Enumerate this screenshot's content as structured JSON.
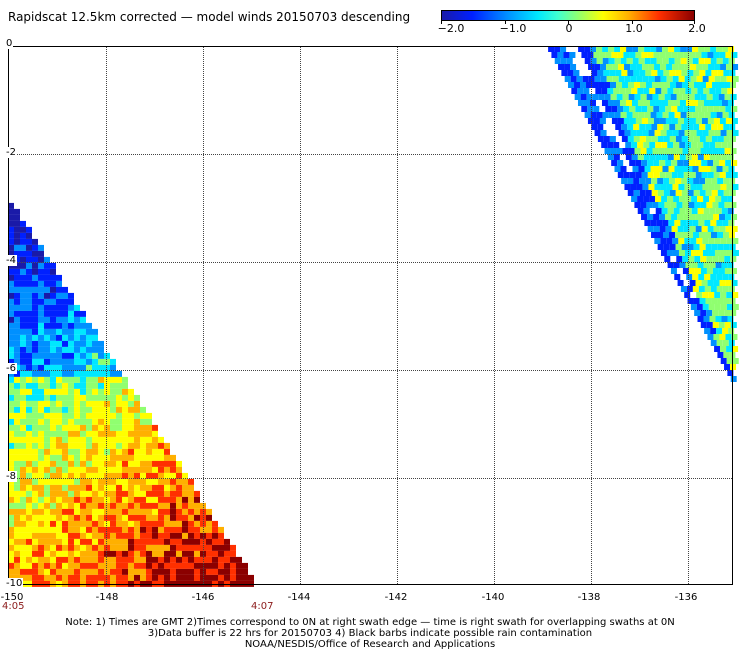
{
  "title": "Rapidscat 12.5km corrected — model winds 20150703 descending",
  "colorbar": {
    "ticks": [
      "−2.0",
      "−1.0",
      "0",
      "1.0",
      "2.0"
    ],
    "range": [
      -2.0,
      2.0
    ],
    "colors": [
      "#1a1aa8",
      "#0020ff",
      "#0090ff",
      "#00e8ff",
      "#90ff70",
      "#ffff00",
      "#ffb000",
      "#ff3000",
      "#8b0000"
    ]
  },
  "map": {
    "lon_ticks": [
      "-150",
      "-148",
      "-146",
      "-144",
      "-142",
      "-140",
      "-138",
      "-136"
    ],
    "lat_ticks": [
      "0",
      "-2",
      "-4",
      "-6",
      "-8",
      "-10"
    ],
    "lon_range": [
      -150,
      -135.1
    ],
    "lat_range": [
      -10,
      0
    ],
    "times": {
      "left": "4:05",
      "right": "4:07"
    },
    "swaths": [
      {
        "name": "west",
        "corners_lonlat": [
          [
            -150,
            -2.8
          ],
          [
            -150,
            -10
          ],
          [
            -144.9,
            -10
          ]
        ]
      },
      {
        "name": "east",
        "corners_lonlat": [
          [
            -138.9,
            0
          ],
          [
            -135.1,
            0
          ],
          [
            -135.1,
            -6.2
          ]
        ]
      }
    ]
  },
  "notes": [
    "Note: 1) Times are GMT 2)Times correspond to 0N at right swath edge — time is right swath for overlapping swaths at 0N",
    "3)Data buffer is 22 hrs for 20150703 4) Black barbs indicate possible rain contamination",
    "NOAA/NESDIS/Office of Research and Applications"
  ]
}
